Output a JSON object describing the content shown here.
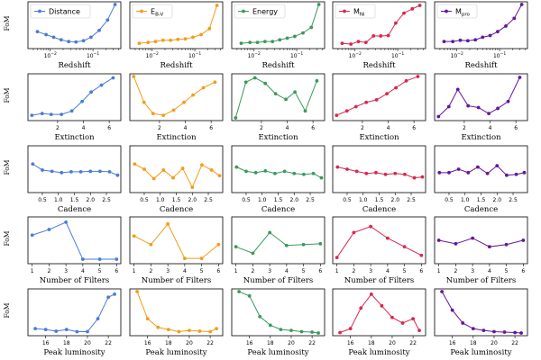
{
  "chart_data": {
    "type": "line",
    "y_axis_label": "FoM",
    "series": [
      {
        "key": "Distance",
        "label": "Distance",
        "sub": "",
        "color": "#4a7bd8"
      },
      {
        "key": "EBV",
        "label": "E",
        "sub": "B-V",
        "color": "#f39c18"
      },
      {
        "key": "Energy",
        "label": "Energy",
        "sub": "",
        "color": "#3a9a5c"
      },
      {
        "key": "MNi",
        "label": "M",
        "sub": "Ni",
        "color": "#d8274f"
      },
      {
        "key": "Mpro",
        "label": "M",
        "sub": "pro",
        "color": "#63169c"
      }
    ],
    "rows": [
      {
        "xlabel": "Redshift",
        "xscale": "log",
        "xlim": [
          0.003,
          0.45
        ],
        "xticks": [
          {
            "v": 0.01,
            "base": "10",
            "exp": "−2"
          },
          {
            "v": 0.1,
            "base": "10",
            "exp": "−1"
          }
        ],
        "x": [
          0.005,
          0.008,
          0.012,
          0.018,
          0.027,
          0.04,
          0.06,
          0.09,
          0.14,
          0.22,
          0.33
        ],
        "y": {
          "Distance": [
            0.35,
            0.28,
            0.22,
            0.16,
            0.12,
            0.11,
            0.14,
            0.22,
            0.38,
            0.62,
            0.98
          ],
          "EBV": [
            0.08,
            0.1,
            0.12,
            0.15,
            0.15,
            0.17,
            0.18,
            0.22,
            0.28,
            0.42,
            0.96
          ],
          "Energy": [
            0.08,
            0.1,
            0.1,
            0.12,
            0.12,
            0.16,
            0.2,
            0.24,
            0.32,
            0.45,
            0.98
          ],
          "MNi": [
            0.08,
            0.06,
            0.12,
            0.1,
            0.25,
            0.25,
            0.26,
            0.55,
            0.78,
            0.88,
            0.96
          ],
          "Mpro": [
            0.12,
            0.12,
            0.15,
            0.14,
            0.16,
            0.22,
            0.26,
            0.35,
            0.48,
            0.66,
            0.98
          ]
        }
      },
      {
        "xlabel": "Extinction",
        "xscale": "linear",
        "xlim": [
          -0.3,
          6.9
        ],
        "xticks": [
          {
            "v": 2,
            "label": "2"
          },
          {
            "v": 4,
            "label": "4"
          },
          {
            "v": 6,
            "label": "6"
          }
        ],
        "x": [
          0,
          0.8,
          1.5,
          2.3,
          3.1,
          3.9,
          4.6,
          5.4,
          6.3
        ],
        "y": {
          "Distance": [
            0.08,
            0.12,
            0.1,
            0.1,
            0.18,
            0.4,
            0.62,
            0.78,
            0.95
          ],
          "EBV": [
            0.98,
            0.38,
            0.12,
            0.08,
            0.2,
            0.38,
            0.55,
            0.72,
            0.85
          ],
          "Energy": [
            0.02,
            0.85,
            0.95,
            0.82,
            0.58,
            0.45,
            0.62,
            0.18,
            0.88
          ],
          "MNi": [
            0.08,
            0.18,
            0.28,
            0.38,
            0.44,
            0.58,
            0.72,
            0.88,
            0.98
          ],
          "Mpro": [
            0.05,
            0.28,
            0.68,
            0.3,
            0.26,
            0.12,
            0.24,
            0.4,
            0.96
          ]
        }
      },
      {
        "xlabel": "Cadence",
        "xscale": "linear",
        "xlim": [
          0.05,
          2.95
        ],
        "xticks": [
          {
            "v": 0.5,
            "label": "0.5"
          },
          {
            "v": 1.0,
            "label": "1.0"
          },
          {
            "v": 1.5,
            "label": "1.5"
          },
          {
            "v": 2.0,
            "label": "2.0"
          },
          {
            "v": 2.5,
            "label": "2.5"
          }
        ],
        "x": [
          0.2,
          0.5,
          0.8,
          1.1,
          1.4,
          1.7,
          2.0,
          2.3,
          2.6,
          2.85
        ],
        "y": {
          "Distance": [
            0.62,
            0.48,
            0.45,
            0.42,
            0.44,
            0.44,
            0.45,
            0.45,
            0.44,
            0.36
          ],
          "EBV": [
            0.62,
            0.5,
            0.28,
            0.48,
            0.3,
            0.52,
            0.08,
            0.6,
            0.48,
            0.35
          ],
          "Energy": [
            0.55,
            0.45,
            0.42,
            0.46,
            0.4,
            0.45,
            0.4,
            0.38,
            0.4,
            0.3
          ],
          "MNi": [
            0.55,
            0.5,
            0.45,
            0.4,
            0.42,
            0.38,
            0.4,
            0.38,
            0.3,
            0.32
          ],
          "Mpro": [
            0.42,
            0.42,
            0.5,
            0.42,
            0.55,
            0.4,
            0.58,
            0.36,
            0.38,
            0.42
          ]
        }
      },
      {
        "xlabel": "Number of Filters",
        "xscale": "linear",
        "xlim": [
          0.75,
          6.25
        ],
        "xticks": [
          {
            "v": 1,
            "label": "1"
          },
          {
            "v": 2,
            "label": "2"
          },
          {
            "v": 3,
            "label": "3"
          },
          {
            "v": 4,
            "label": "4"
          },
          {
            "v": 5,
            "label": "5"
          },
          {
            "v": 6,
            "label": "6"
          }
        ],
        "x": [
          1,
          2,
          3,
          4,
          5,
          6
        ],
        "y": {
          "Distance": [
            0.62,
            0.75,
            0.92,
            0.06,
            0.06,
            0.06
          ],
          "EBV": [
            0.6,
            0.4,
            0.88,
            0.08,
            0.08,
            0.4
          ],
          "Energy": [
            0.35,
            0.2,
            0.68,
            0.38,
            0.4,
            0.42
          ],
          "MNi": [
            0.1,
            0.68,
            0.82,
            0.55,
            0.35,
            0.15
          ],
          "Mpro": [
            0.5,
            0.42,
            0.55,
            0.35,
            0.4,
            0.5
          ]
        }
      },
      {
        "xlabel": "Peak luminosity",
        "xscale": "linear",
        "xlim": [
          14.3,
          23.2
        ],
        "xticks": [
          {
            "v": 16,
            "label": "16"
          },
          {
            "v": 18,
            "label": "18"
          },
          {
            "v": 20,
            "label": "20"
          },
          {
            "v": 22,
            "label": "22"
          }
        ],
        "x": [
          15,
          16,
          17,
          18,
          19,
          20,
          21,
          22,
          22.6
        ],
        "y": {
          "Distance": [
            0.12,
            0.1,
            0.06,
            0.1,
            0.05,
            0.05,
            0.35,
            0.85,
            0.92
          ],
          "EBV": [
            0.98,
            0.35,
            0.15,
            0.1,
            0.05,
            0.08,
            0.06,
            0.05,
            0.12
          ],
          "Energy": [
            0.98,
            0.88,
            0.4,
            0.2,
            0.1,
            0.08,
            0.05,
            0.04,
            0.02
          ],
          "MNi": [
            0.03,
            0.12,
            0.6,
            0.92,
            0.65,
            0.38,
            0.25,
            0.35,
            0.08
          ],
          "Mpro": [
            0.98,
            0.55,
            0.25,
            0.12,
            0.08,
            0.05,
            0.04,
            0.03,
            0.02
          ]
        }
      }
    ]
  }
}
